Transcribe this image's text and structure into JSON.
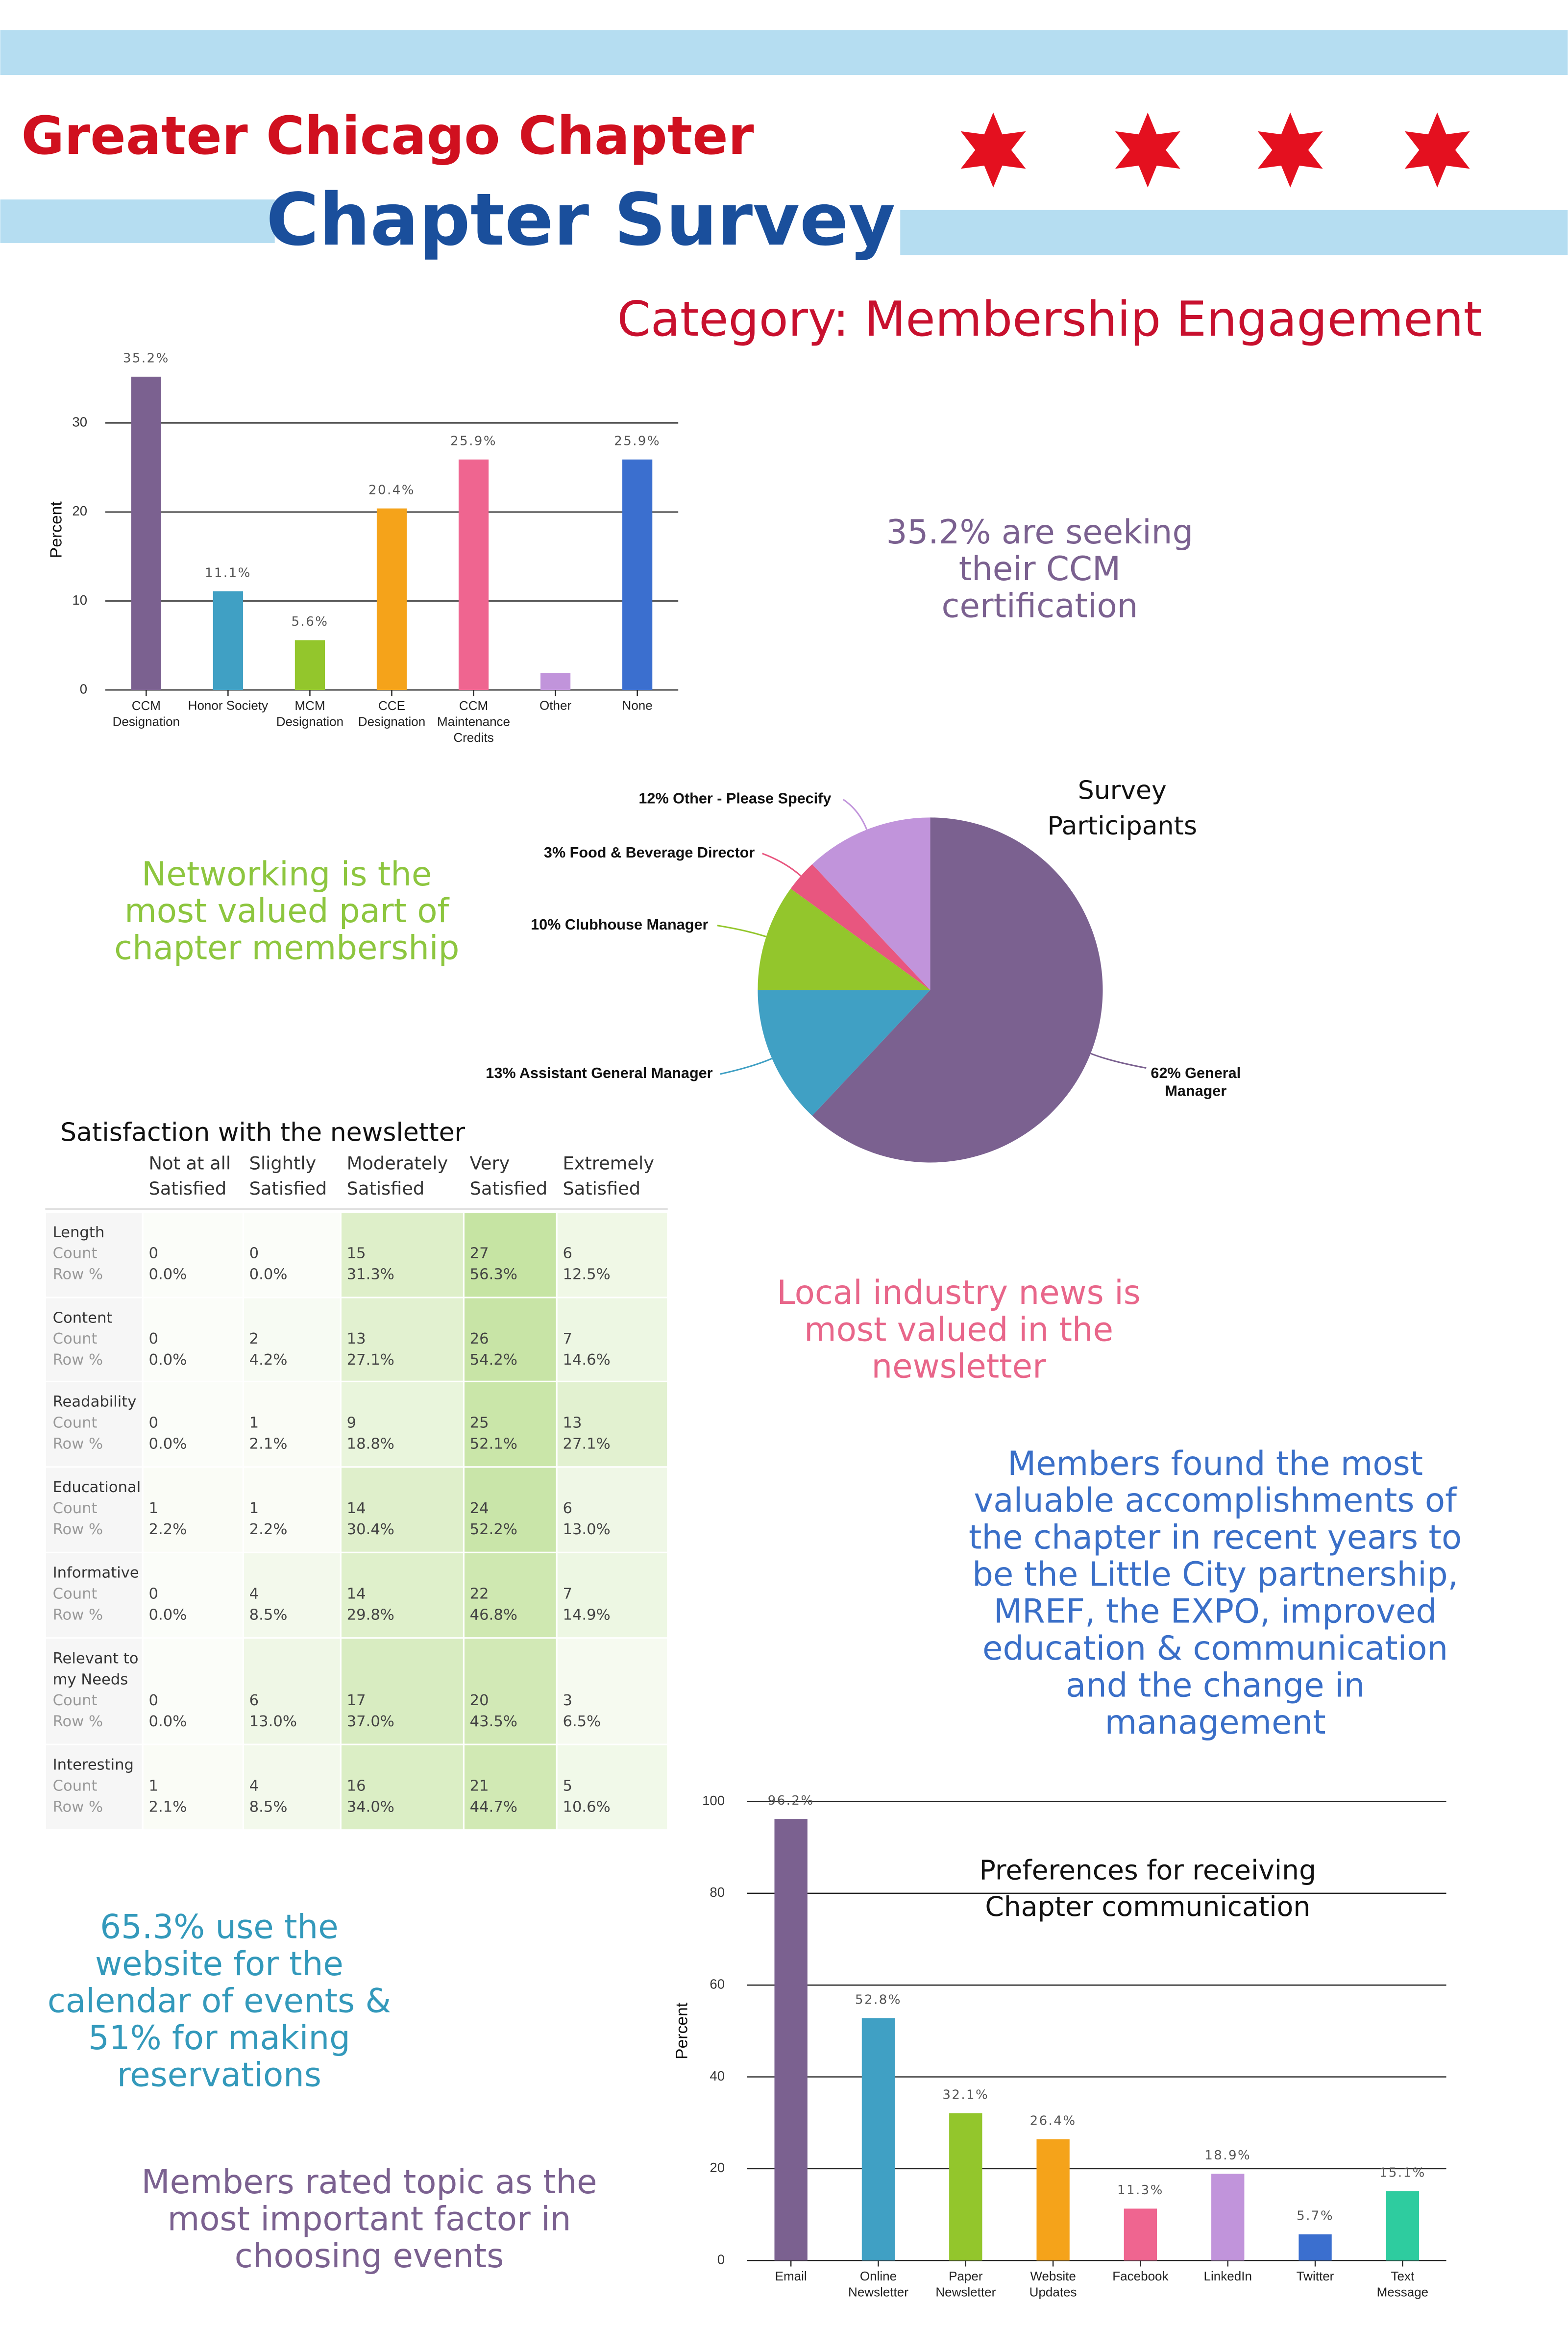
{
  "header": {
    "chapter": "Greater Chicago Chapter",
    "title": "Chapter Survey",
    "category": "Category: Membership Engagement"
  },
  "chart_data": [
    {
      "type": "bar",
      "y_label": "Percent",
      "categories": [
        "CCM\nDesignation",
        "Honor Society",
        "MCM\nDesignation",
        "CCE\nDesignation",
        "CCM\nMaintenance\nCredits",
        "Other",
        "None"
      ],
      "values": [
        35.2,
        11.1,
        5.6,
        20.4,
        25.9,
        1.9,
        25.9
      ],
      "value_labels": [
        "35.2%",
        "11.1%",
        "5.6%",
        "20.4%",
        "25.9%",
        null,
        "25.9%"
      ],
      "colors": [
        "#7b6190",
        "#40a0c4",
        "#93c62c",
        "#f5a31a",
        "#ef6590",
        "#c194db",
        "#3b6fcf"
      ],
      "ylim": [
        0,
        36
      ],
      "yticks": [
        0,
        10,
        20,
        30
      ],
      "grid": true
    },
    {
      "type": "pie",
      "title": "Survey\nParticipants",
      "categories": [
        "General Manager",
        "Assistant General Manager",
        "Clubhouse Manager",
        "Food & Beverage Director",
        "Other - Please Specify"
      ],
      "values": [
        62,
        13,
        10,
        3,
        12
      ],
      "value_labels": [
        "62% General\nManager",
        "13% Assistant General Manager",
        "10% Clubhouse Manager",
        "3% Food & Beverage Director",
        "12% Other - Please Specify"
      ],
      "colors": [
        "#7b6190",
        "#40a0c4",
        "#93c62c",
        "#e8567f",
        "#c194db"
      ]
    },
    {
      "type": "bar",
      "title": "Preferences for receiving\nChapter communication",
      "y_label": "Percent",
      "categories": [
        "Email",
        "Online\nNewsletter",
        "Paper\nNewsletter",
        "Website\nUpdates",
        "Facebook",
        "LinkedIn",
        "Twitter",
        "Text\nMessage"
      ],
      "values": [
        96.2,
        52.8,
        32.1,
        26.4,
        11.3,
        18.9,
        5.7,
        15.1
      ],
      "value_labels": [
        "96.2%",
        "52.8%",
        "32.1%",
        "26.4%",
        "11.3%",
        "18.9%",
        "5.7%",
        "15.1%"
      ],
      "colors": [
        "#7b6190",
        "#40a0c4",
        "#93c62c",
        "#f5a31a",
        "#ef6590",
        "#c194db",
        "#3b6fcf",
        "#2ecc9f"
      ],
      "ylim": [
        0,
        100
      ],
      "yticks": [
        0,
        20,
        40,
        60,
        80,
        100
      ],
      "grid": true
    }
  ],
  "callouts": [
    "35.2% are seeking\ntheir CCM\ncertification",
    "Networking is the\nmost valued part of\nchapter membership",
    "Local industry news is\nmost valued in the\nnewsletter",
    "Members found the most\nvaluable accomplishments of\nthe chapter in recent years to\nbe the Little City partnership,\nMREF, the EXPO, improved\neducation & communication\nand the change in\nmanagement",
    "65.3% use the\nwebsite for the\ncalendar of events &\n51% for making\nreservations",
    "Members rated topic as the\nmost important factor in\nchoosing events"
  ],
  "table": {
    "title": "Satisfaction with the newsletter",
    "columns": [
      "Not at all\nSatisfied",
      "Slightly\nSatisfied",
      "Moderately\nSatisfied",
      "Very\nSatisfied",
      "Extremely\nSatisfied"
    ],
    "rows": [
      {
        "label": "Length",
        "count_label": "Count",
        "pct_label": "Row %",
        "counts": [
          0,
          0,
          15,
          27,
          6
        ],
        "percents": [
          "0.0%",
          "0.0%",
          "31.3%",
          "56.3%",
          "12.5%"
        ]
      },
      {
        "label": "Content",
        "count_label": "Count",
        "pct_label": "Row %",
        "counts": [
          0,
          2,
          13,
          26,
          7
        ],
        "percents": [
          "0.0%",
          "4.2%",
          "27.1%",
          "54.2%",
          "14.6%"
        ]
      },
      {
        "label": "Readability",
        "count_label": "Count",
        "pct_label": "Row %",
        "counts": [
          0,
          1,
          9,
          25,
          13
        ],
        "percents": [
          "0.0%",
          "2.1%",
          "18.8%",
          "52.1%",
          "27.1%"
        ]
      },
      {
        "label": "Educational",
        "count_label": "Count",
        "pct_label": "Row %",
        "counts": [
          1,
          1,
          14,
          24,
          6
        ],
        "percents": [
          "2.2%",
          "2.2%",
          "30.4%",
          "52.2%",
          "13.0%"
        ]
      },
      {
        "label": "Informative",
        "count_label": "Count",
        "pct_label": "Row %",
        "counts": [
          0,
          4,
          14,
          22,
          7
        ],
        "percents": [
          "0.0%",
          "8.5%",
          "29.8%",
          "46.8%",
          "14.9%"
        ]
      },
      {
        "label": "Relevant to\nmy Needs",
        "count_label": "Count",
        "pct_label": "Row %",
        "counts": [
          0,
          6,
          17,
          20,
          3
        ],
        "percents": [
          "0.0%",
          "13.0%",
          "37.0%",
          "43.5%",
          "6.5%"
        ]
      },
      {
        "label": "Interesting",
        "count_label": "Count",
        "pct_label": "Row %",
        "counts": [
          1,
          4,
          16,
          21,
          5
        ],
        "percents": [
          "2.1%",
          "8.5%",
          "34.0%",
          "44.7%",
          "10.6%"
        ]
      }
    ]
  }
}
